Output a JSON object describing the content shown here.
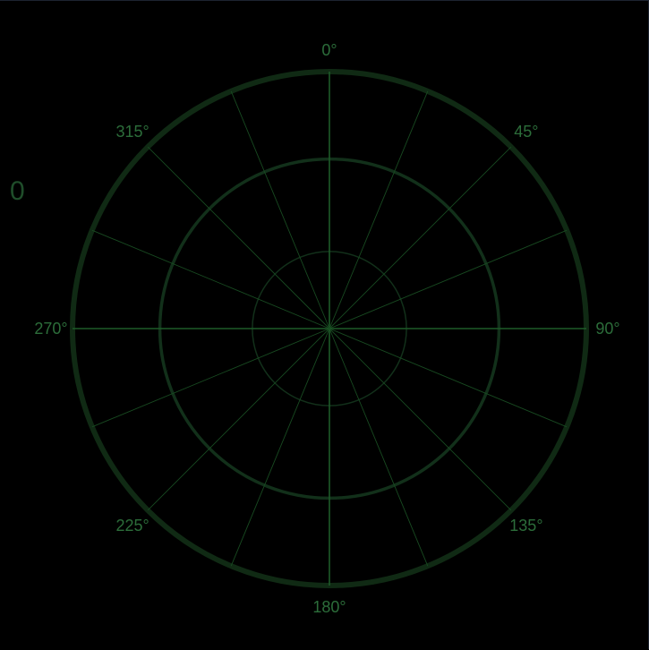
{
  "readout": {
    "value": "0"
  },
  "colors": {
    "background": "#000000",
    "ring": "#102a14",
    "inner_ring": "#12301a",
    "axis": "#1d5a28",
    "spoke": "#184a21",
    "label": "#2c6d3a"
  },
  "radar": {
    "ring_fractions": [
      1.0,
      0.66,
      0.3
    ],
    "spoke_angles_deg": [
      0,
      22.5,
      45,
      67.5,
      90,
      112.5,
      135,
      157.5,
      180,
      202.5,
      225,
      247.5,
      270,
      292.5,
      315,
      337.5
    ],
    "bearing_labels": [
      {
        "angle": 0,
        "text": "0°"
      },
      {
        "angle": 45,
        "text": "45°"
      },
      {
        "angle": 90,
        "text": "90°"
      },
      {
        "angle": 135,
        "text": "135°"
      },
      {
        "angle": 180,
        "text": "180°"
      },
      {
        "angle": 225,
        "text": "225°"
      },
      {
        "angle": 270,
        "text": "270°"
      },
      {
        "angle": 315,
        "text": "315°"
      }
    ]
  }
}
